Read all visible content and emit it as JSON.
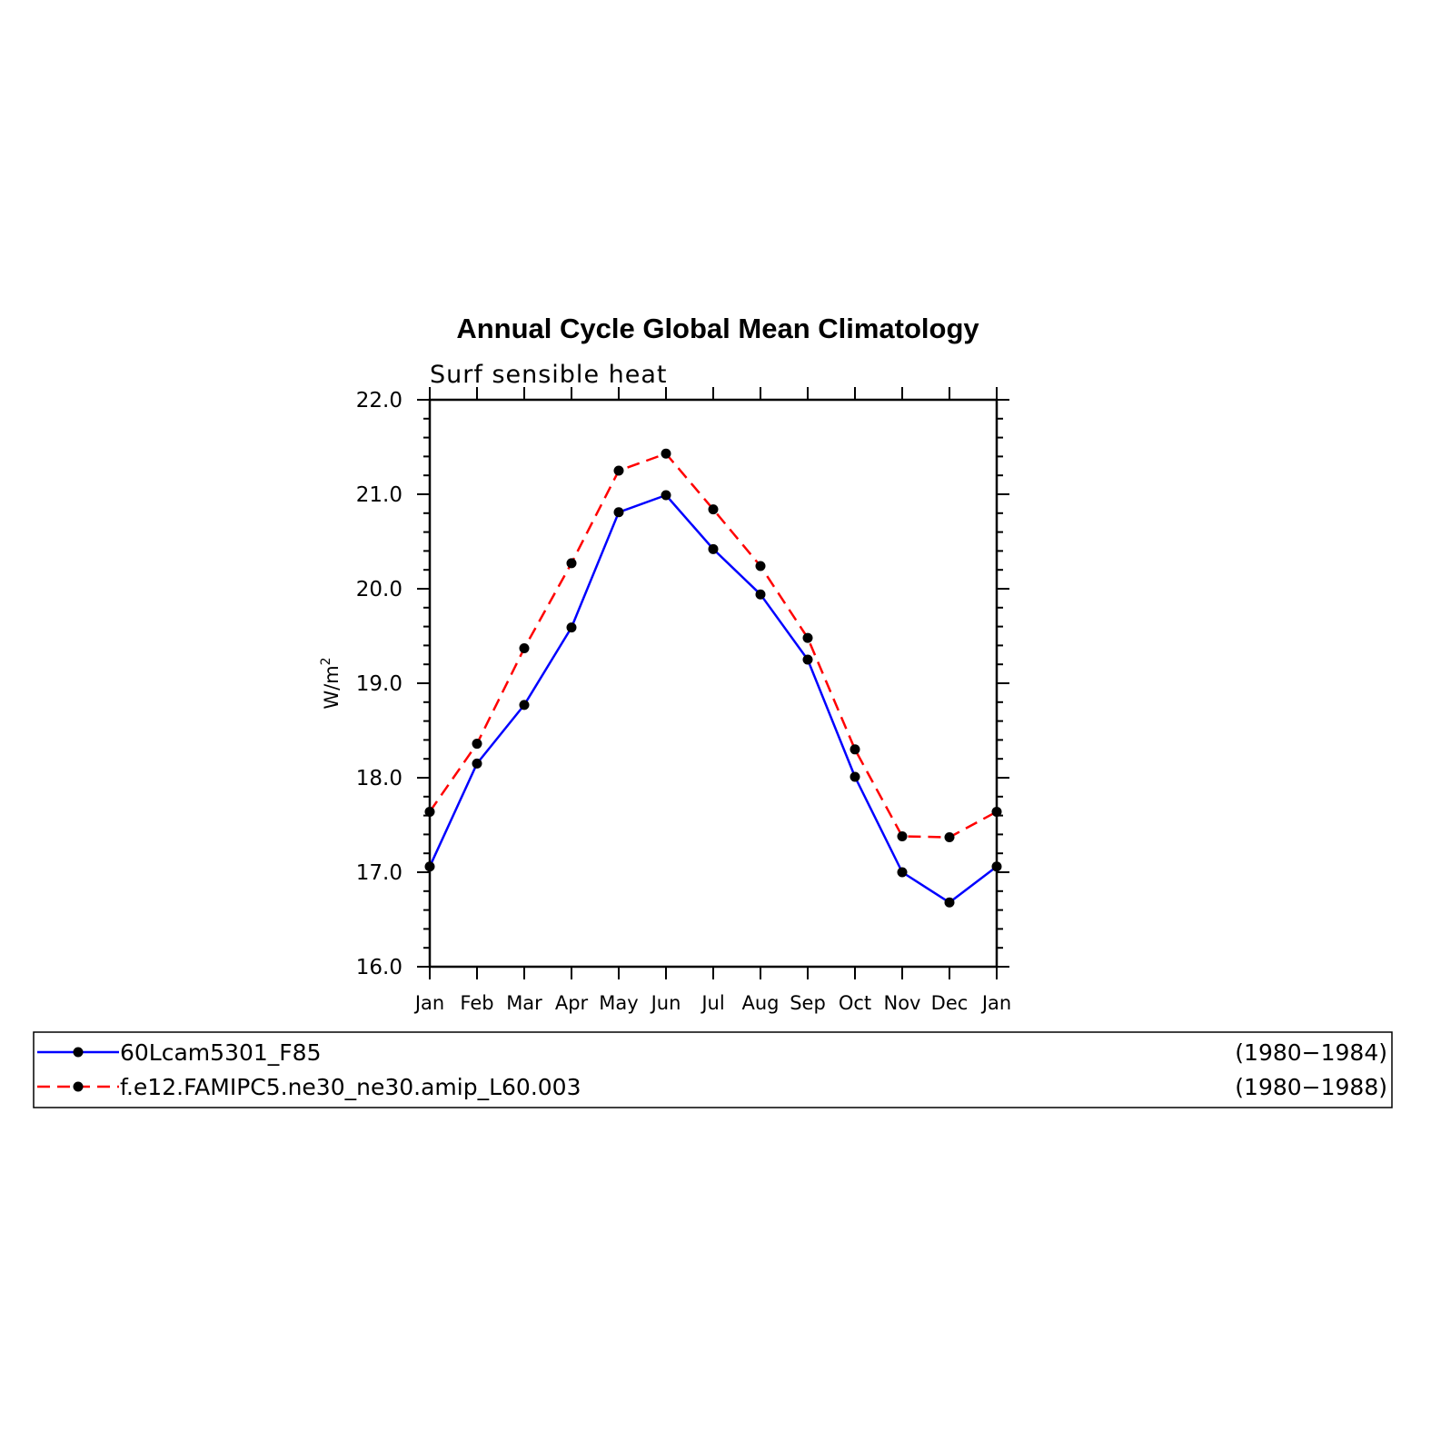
{
  "chart_data": {
    "type": "line",
    "title": "Annual Cycle Global Mean Climatology",
    "subtitle": "Surf sensible heat",
    "ylabel": "W/m",
    "ylabel_sup": "2",
    "categories": [
      "Jan",
      "Feb",
      "Mar",
      "Apr",
      "May",
      "Jun",
      "Jul",
      "Aug",
      "Sep",
      "Oct",
      "Nov",
      "Dec",
      "Jan"
    ],
    "ylim": [
      16.0,
      22.0
    ],
    "yticks": [
      "16.0",
      "17.0",
      "18.0",
      "19.0",
      "20.0",
      "21.0",
      "22.0"
    ],
    "grid": false,
    "legend_placement": "bottom",
    "series": [
      {
        "name": "60Lcam5301_F85",
        "period": "(1980−1984)",
        "color": "#0000ff",
        "dash": "solid",
        "values": [
          17.06,
          18.15,
          18.77,
          19.59,
          20.81,
          20.99,
          20.42,
          19.94,
          19.25,
          18.01,
          17.0,
          16.68,
          17.06
        ]
      },
      {
        "name": "f.e12.FAMIPC5.ne30_ne30.amip_L60.003",
        "period": "(1980−1988)",
        "color": "#ff0000",
        "dash": "dashed",
        "values": [
          17.64,
          18.36,
          19.37,
          20.27,
          21.25,
          21.43,
          20.84,
          20.24,
          19.48,
          18.3,
          17.38,
          17.37,
          17.64
        ]
      }
    ]
  }
}
